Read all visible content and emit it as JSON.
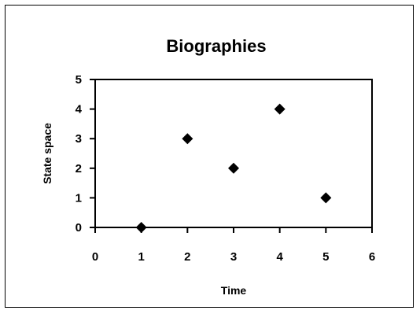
{
  "chart_data": {
    "type": "scatter",
    "title": "Biographies",
    "xlabel": "Time",
    "ylabel": "State space",
    "xlim": [
      0,
      6
    ],
    "ylim": [
      0,
      5
    ],
    "x_ticks": [
      "0",
      "1",
      "2",
      "3",
      "4",
      "5",
      "6"
    ],
    "y_ticks": [
      "0",
      "1",
      "2",
      "3",
      "4",
      "5"
    ],
    "grid": false,
    "legend": "none",
    "marker": "diamond",
    "marker_color": "#000000",
    "x": [
      1,
      2,
      3,
      4,
      5
    ],
    "y": [
      0,
      3,
      2,
      4,
      1
    ]
  }
}
